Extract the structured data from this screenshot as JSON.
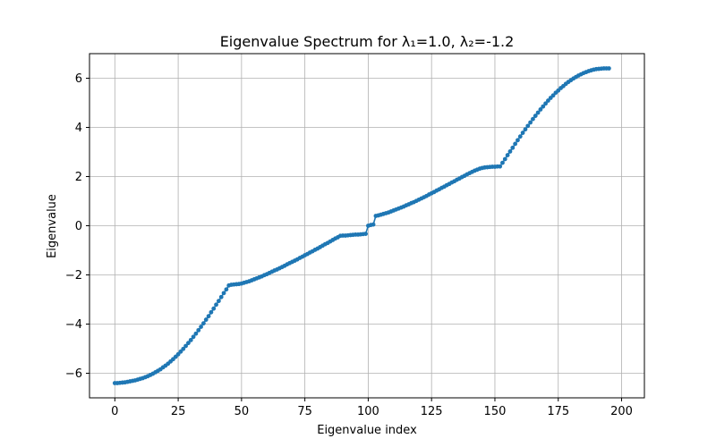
{
  "chart_data": {
    "type": "line",
    "title": "Eigenvalue Spectrum for λ₁=1.0, λ₂=-1.2",
    "xlabel": "Eigenvalue index",
    "ylabel": "Eigenvalue",
    "xlim": [
      -10,
      209
    ],
    "ylim": [
      -7.0,
      7.0
    ],
    "xticks": [
      0,
      25,
      50,
      75,
      100,
      125,
      150,
      175,
      200
    ],
    "yticks": [
      -6,
      -4,
      -2,
      0,
      2,
      4,
      6
    ],
    "ytick_labels": [
      "−6",
      "−4",
      "−2",
      "0",
      "2",
      "4",
      "6"
    ],
    "grid": true,
    "marker": "circle",
    "series": [
      {
        "color": "#1f77b4",
        "x_start": 0,
        "x_step": 1,
        "values": [
          -6.4,
          -6.4,
          -6.39,
          -6.38,
          -6.37,
          -6.35,
          -6.33,
          -6.31,
          -6.29,
          -6.26,
          -6.23,
          -6.2,
          -6.16,
          -6.12,
          -6.07,
          -6.02,
          -5.96,
          -5.9,
          -5.84,
          -5.76,
          -5.69,
          -5.61,
          -5.52,
          -5.43,
          -5.33,
          -5.23,
          -5.12,
          -5.01,
          -4.89,
          -4.77,
          -4.65,
          -4.52,
          -4.39,
          -4.25,
          -4.11,
          -3.97,
          -3.82,
          -3.68,
          -3.52,
          -3.37,
          -3.21,
          -3.06,
          -2.9,
          -2.74,
          -2.59,
          -2.43,
          -2.4,
          -2.39,
          -2.38,
          -2.37,
          -2.35,
          -2.32,
          -2.29,
          -2.26,
          -2.22,
          -2.18,
          -2.14,
          -2.1,
          -2.06,
          -2.01,
          -1.97,
          -1.92,
          -1.87,
          -1.82,
          -1.78,
          -1.73,
          -1.68,
          -1.63,
          -1.57,
          -1.52,
          -1.47,
          -1.42,
          -1.37,
          -1.31,
          -1.26,
          -1.2,
          -1.15,
          -1.09,
          -1.04,
          -0.98,
          -0.93,
          -0.87,
          -0.81,
          -0.75,
          -0.7,
          -0.64,
          -0.58,
          -0.52,
          -0.47,
          -0.41,
          -0.4,
          -0.4,
          -0.39,
          -0.38,
          -0.37,
          -0.36,
          -0.36,
          -0.35,
          -0.34,
          -0.33,
          0.0,
          0.03,
          0.05,
          0.4,
          0.42,
          0.45,
          0.48,
          0.51,
          0.54,
          0.58,
          0.62,
          0.66,
          0.7,
          0.74,
          0.78,
          0.83,
          0.87,
          0.92,
          0.96,
          1.01,
          1.06,
          1.11,
          1.16,
          1.21,
          1.27,
          1.32,
          1.37,
          1.43,
          1.48,
          1.54,
          1.59,
          1.65,
          1.7,
          1.76,
          1.81,
          1.87,
          1.92,
          1.98,
          2.03,
          2.09,
          2.14,
          2.19,
          2.24,
          2.28,
          2.32,
          2.35,
          2.37,
          2.38,
          2.39,
          2.4,
          2.4,
          2.41,
          2.41,
          2.56,
          2.71,
          2.87,
          3.02,
          3.17,
          3.33,
          3.48,
          3.63,
          3.78,
          3.92,
          4.06,
          4.2,
          4.34,
          4.47,
          4.6,
          4.73,
          4.85,
          4.97,
          5.09,
          5.2,
          5.3,
          5.41,
          5.5,
          5.6,
          5.68,
          5.77,
          5.85,
          5.92,
          5.99,
          6.05,
          6.11,
          6.16,
          6.21,
          6.25,
          6.29,
          6.32,
          6.35,
          6.37,
          6.38,
          6.39,
          6.4,
          6.4,
          6.4
        ]
      }
    ]
  }
}
